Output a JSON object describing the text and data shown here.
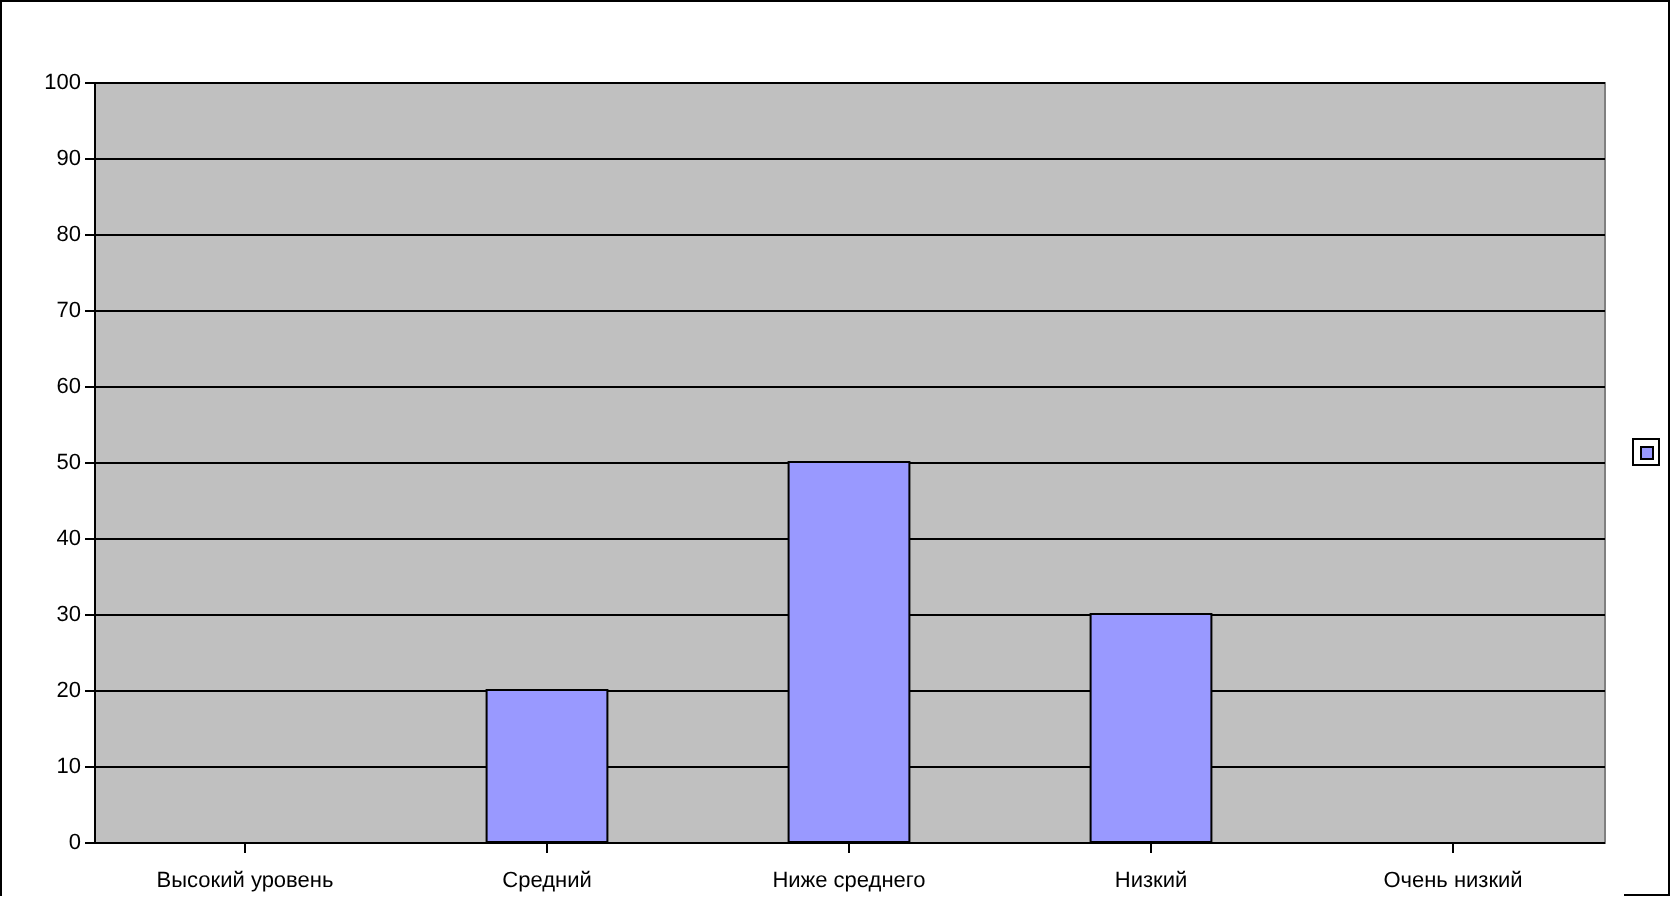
{
  "chart_data": {
    "type": "bar",
    "categories": [
      "Высокий уровень",
      "Средний",
      "Ниже среднего",
      "Низкий",
      "Очень низкий"
    ],
    "series": [
      {
        "color": "#9999ff",
        "values": [
          0,
          20,
          50,
          30,
          0
        ]
      }
    ],
    "ylim": [
      0,
      100
    ],
    "yticks": [
      0,
      10,
      20,
      30,
      40,
      50,
      60,
      70,
      80,
      90,
      100
    ],
    "grid": "y"
  }
}
